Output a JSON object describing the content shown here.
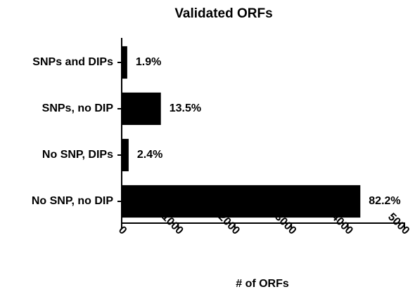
{
  "chart_data": {
    "type": "barh",
    "title": "Validated ORFs",
    "xlabel": "# of ORFs",
    "categories": [
      "SNPs and DIPs",
      "SNPs, no DIP",
      "No SNP, DIPs",
      "No SNP, no DIP"
    ],
    "values": [
      98,
      693,
      123,
      4220
    ],
    "percent_labels": [
      "1.9%",
      "13.5%",
      "2.4%",
      "82.2%"
    ],
    "color": "#000000",
    "xlim": [
      0,
      5000
    ],
    "xticks": [
      0,
      1000,
      2000,
      3000,
      4000,
      5000
    ],
    "grid": false
  }
}
